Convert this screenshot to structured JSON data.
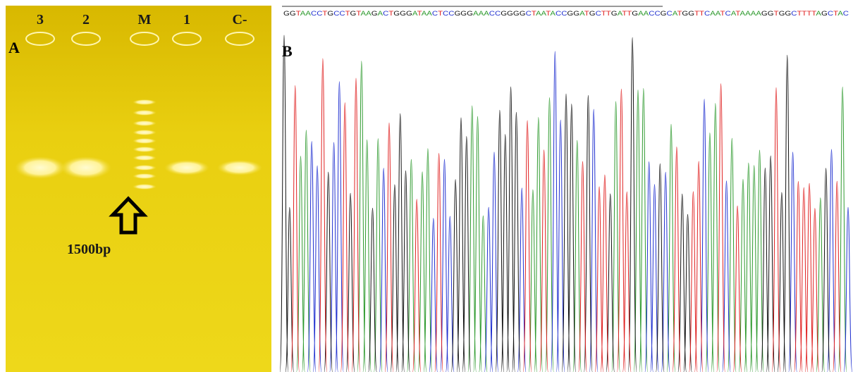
{
  "panel_a": {
    "label": "A",
    "lanes": [
      "3",
      "2",
      "M",
      "1",
      "C-"
    ],
    "marker_label": "1500bp"
  },
  "panel_b": {
    "label": "B",
    "sequence": "GGTAACCTGCCTGTAAGACTGGGATAACTCCGGGAAACCGGGGCTAATACCGGATGCTTGATTGAACCGCATGGTTCAATCATAAAAGGTGGCTTTTAGCTAC"
  }
}
